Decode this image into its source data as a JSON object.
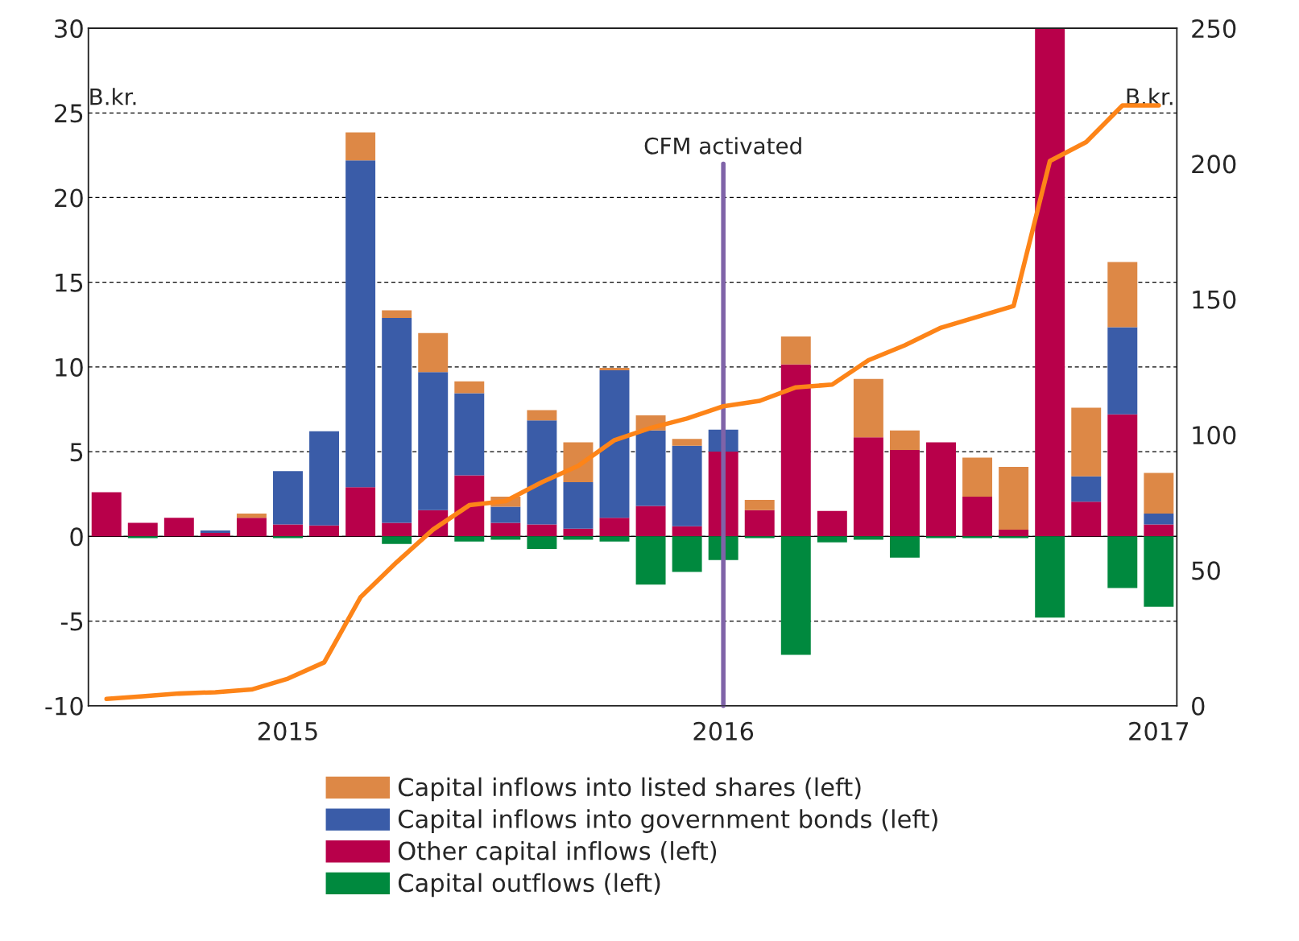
{
  "chart_data": {
    "type": "bar",
    "stacked": true,
    "categories": [
      null,
      null,
      null,
      null,
      null,
      "2015",
      null,
      null,
      null,
      null,
      null,
      null,
      null,
      null,
      null,
      null,
      null,
      "2016",
      null,
      null,
      null,
      null,
      null,
      null,
      null,
      null,
      null,
      null,
      null,
      "2017"
    ],
    "series": [
      {
        "name": "Other capital inflows (left)",
        "color": "#b8004a",
        "values": [
          2.6,
          0.8,
          1.1,
          0.2,
          1.1,
          0.7,
          0.65,
          2.9,
          0.8,
          1.55,
          3.6,
          0.8,
          0.7,
          0.45,
          1.1,
          1.8,
          0.6,
          5.0,
          1.55,
          10.15,
          1.5,
          5.85,
          5.1,
          5.55,
          2.35,
          0.4,
          30,
          2.05,
          7.2,
          0.7
        ]
      },
      {
        "name": "Capital inflows into government bonds (left)",
        "color": "#3a5ca8",
        "values": [
          0,
          0,
          0,
          0.15,
          0,
          3.15,
          5.55,
          19.3,
          12.1,
          8.15,
          4.85,
          0.95,
          6.15,
          2.75,
          8.7,
          4.45,
          4.75,
          1.3,
          0,
          0,
          0,
          0,
          0,
          0,
          0,
          0,
          0,
          1.5,
          5.15,
          0.65
        ]
      },
      {
        "name": "Capital inflows into listed shares (left)",
        "color": "#dd8846",
        "values": [
          0,
          0,
          0,
          0,
          0.25,
          0,
          0,
          1.65,
          0.45,
          2.3,
          0.7,
          0.6,
          0.6,
          2.35,
          0.15,
          0.9,
          0.4,
          0,
          0.6,
          1.65,
          0,
          3.45,
          1.15,
          0,
          2.3,
          3.7,
          0,
          4.05,
          3.85,
          2.4
        ]
      },
      {
        "name": "Capital outflows (left)",
        "color": "#00893e",
        "values": [
          0,
          -0.1,
          0,
          0,
          0,
          -0.1,
          0,
          0,
          -0.45,
          0,
          -0.3,
          -0.2,
          -0.75,
          -0.2,
          -0.3,
          -2.85,
          -2.1,
          -1.4,
          -0.1,
          -7.0,
          -0.35,
          -0.2,
          -1.25,
          -0.1,
          -0.1,
          -0.1,
          -4.8,
          0,
          -3.05,
          -4.15
        ]
      },
      {
        "type": "line",
        "axis": "y2",
        "color": "#fd8418",
        "values": [
          2.5,
          3.5,
          4.5,
          5,
          6,
          10,
          16,
          40,
          53,
          65,
          74,
          75.5,
          82.5,
          88.5,
          98,
          102.5,
          106,
          110.5,
          112.5,
          117.5,
          118.5,
          127.5,
          133,
          139.5,
          143.5,
          147.5,
          201,
          208,
          221.5,
          221.5
        ]
      }
    ],
    "ylim": [
      -10,
      30
    ],
    "yticks": [
      -10,
      -5,
      0,
      5,
      10,
      15,
      20,
      25,
      30
    ],
    "y2lim": [
      0,
      250
    ],
    "y2ticks": [
      0,
      50,
      100,
      150,
      200,
      250
    ],
    "ref_lines": [
      {
        "axis": "x",
        "value": "2016",
        "label": "CFM activated",
        "color": "#7f63a8"
      }
    ],
    "annotations": [
      "B.kr.",
      "B.kr."
    ],
    "grid": "y",
    "legend": "bottom"
  }
}
